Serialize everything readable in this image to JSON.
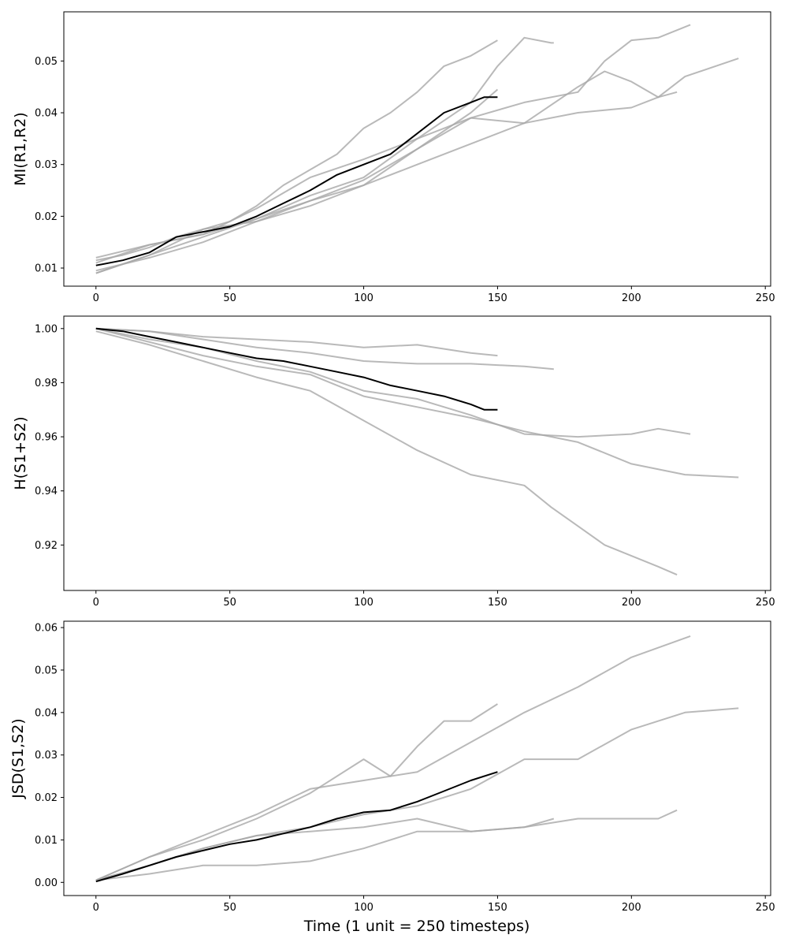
{
  "chart_data": [
    {
      "type": "line",
      "title": "",
      "xlabel": "",
      "ylabel": "MI(R1,R2)",
      "xlim": [
        -12,
        252
      ],
      "ylim": [
        0.0065,
        0.0595
      ],
      "xticks": [
        0,
        50,
        100,
        150,
        200,
        250
      ],
      "yticks": [
        0.01,
        0.02,
        0.03,
        0.04,
        0.05
      ],
      "ytick_labels": [
        "0.01",
        "0.02",
        "0.03",
        "0.04",
        "0.05"
      ],
      "grid": false,
      "series": [
        {
          "style": "gray",
          "x": [
            0,
            10,
            20,
            30,
            40,
            50,
            60,
            70,
            80,
            90,
            100,
            110,
            120,
            130,
            140,
            150
          ],
          "y": [
            0.0115,
            0.0125,
            0.014,
            0.016,
            0.0175,
            0.019,
            0.022,
            0.026,
            0.029,
            0.032,
            0.037,
            0.04,
            0.044,
            0.049,
            0.051,
            0.054
          ]
        },
        {
          "style": "gray",
          "x": [
            0,
            20,
            40,
            60,
            80,
            100,
            120,
            140,
            150,
            160,
            170,
            171
          ],
          "y": [
            0.012,
            0.0145,
            0.0165,
            0.0215,
            0.0275,
            0.031,
            0.035,
            0.042,
            0.049,
            0.0545,
            0.0535,
            0.0535
          ]
        },
        {
          "style": "gray",
          "x": [
            0,
            20,
            40,
            60,
            80,
            100,
            120,
            140,
            150
          ],
          "y": [
            0.009,
            0.0125,
            0.0175,
            0.019,
            0.023,
            0.027,
            0.033,
            0.04,
            0.0445
          ]
        },
        {
          "style": "gray",
          "x": [
            0,
            20,
            40,
            60,
            80,
            100,
            120,
            140,
            160,
            180,
            190,
            200,
            210,
            222
          ],
          "y": [
            0.011,
            0.0145,
            0.0165,
            0.0195,
            0.024,
            0.0275,
            0.035,
            0.039,
            0.042,
            0.044,
            0.05,
            0.054,
            0.0545,
            0.057
          ]
        },
        {
          "style": "gray",
          "x": [
            0,
            20,
            40,
            60,
            80,
            100,
            120,
            140,
            160,
            180,
            190,
            200,
            210,
            217
          ],
          "y": [
            0.009,
            0.0125,
            0.016,
            0.0195,
            0.023,
            0.026,
            0.033,
            0.039,
            0.038,
            0.045,
            0.048,
            0.046,
            0.043,
            0.044
          ]
        },
        {
          "style": "gray",
          "x": [
            0,
            20,
            40,
            60,
            80,
            100,
            120,
            140,
            160,
            180,
            200,
            210,
            220,
            240
          ],
          "y": [
            0.0095,
            0.012,
            0.015,
            0.019,
            0.022,
            0.026,
            0.03,
            0.034,
            0.038,
            0.04,
            0.041,
            0.043,
            0.047,
            0.0505
          ]
        },
        {
          "style": "mean",
          "x": [
            0,
            10,
            20,
            30,
            40,
            50,
            60,
            70,
            80,
            90,
            100,
            110,
            120,
            130,
            140,
            145,
            150
          ],
          "y": [
            0.0105,
            0.0115,
            0.013,
            0.016,
            0.017,
            0.018,
            0.02,
            0.0225,
            0.025,
            0.028,
            0.03,
            0.032,
            0.036,
            0.04,
            0.042,
            0.043,
            0.043
          ]
        }
      ]
    },
    {
      "type": "line",
      "title": "",
      "xlabel": "",
      "ylabel": "H(S1+S2)",
      "xlim": [
        -12,
        252
      ],
      "ylim": [
        0.9032,
        1.0046
      ],
      "xticks": [
        0,
        50,
        100,
        150,
        200,
        250
      ],
      "yticks": [
        0.92,
        0.94,
        0.96,
        0.98,
        1.0
      ],
      "ytick_labels": [
        "0.92",
        "0.94",
        "0.96",
        "0.98",
        "1.00"
      ],
      "grid": false,
      "series": [
        {
          "style": "gray",
          "x": [
            0,
            20,
            40,
            60,
            80,
            100,
            120,
            140,
            150
          ],
          "y": [
            1.0,
            0.999,
            0.997,
            0.996,
            0.995,
            0.993,
            0.994,
            0.991,
            0.99
          ]
        },
        {
          "style": "gray",
          "x": [
            0,
            20,
            40,
            60,
            80,
            100,
            120,
            140,
            160,
            171
          ],
          "y": [
            1.0,
            0.999,
            0.996,
            0.993,
            0.991,
            0.988,
            0.987,
            0.987,
            0.986,
            0.985
          ]
        },
        {
          "style": "gray",
          "x": [
            0,
            20,
            40,
            60,
            80,
            100,
            120,
            140,
            160,
            180,
            200,
            210,
            222
          ],
          "y": [
            1.0,
            0.996,
            0.993,
            0.988,
            0.984,
            0.977,
            0.974,
            0.968,
            0.961,
            0.96,
            0.961,
            0.963,
            0.961
          ]
        },
        {
          "style": "gray",
          "x": [
            0,
            20,
            40,
            60,
            80,
            100,
            120,
            140,
            160,
            180,
            200,
            220,
            240
          ],
          "y": [
            1.0,
            0.995,
            0.99,
            0.986,
            0.983,
            0.975,
            0.971,
            0.967,
            0.962,
            0.958,
            0.95,
            0.946,
            0.945
          ]
        },
        {
          "style": "gray",
          "x": [
            0,
            20,
            40,
            60,
            80,
            100,
            120,
            140,
            160,
            170,
            180,
            190,
            200,
            210,
            217
          ],
          "y": [
            0.999,
            0.994,
            0.988,
            0.982,
            0.977,
            0.966,
            0.955,
            0.946,
            0.942,
            0.934,
            0.927,
            0.92,
            0.916,
            0.912,
            0.909
          ]
        },
        {
          "style": "mean",
          "x": [
            0,
            10,
            20,
            30,
            40,
            50,
            60,
            70,
            80,
            90,
            100,
            110,
            120,
            130,
            140,
            145,
            150
          ],
          "y": [
            1.0,
            0.999,
            0.997,
            0.995,
            0.993,
            0.991,
            0.989,
            0.988,
            0.986,
            0.984,
            0.982,
            0.979,
            0.977,
            0.975,
            0.972,
            0.97,
            0.97
          ]
        }
      ]
    },
    {
      "type": "line",
      "title": "",
      "xlabel": "Time (1 unit = 250 timesteps)",
      "ylabel": "JSD(S1,S2)",
      "xlim": [
        -12,
        252
      ],
      "ylim": [
        -0.0031,
        0.0615
      ],
      "xticks": [
        0,
        50,
        100,
        150,
        200,
        250
      ],
      "yticks": [
        0.0,
        0.01,
        0.02,
        0.03,
        0.04,
        0.05,
        0.06
      ],
      "ytick_labels": [
        "0.00",
        "0.01",
        "0.02",
        "0.03",
        "0.04",
        "0.05",
        "0.06"
      ],
      "grid": false,
      "series": [
        {
          "style": "gray",
          "x": [
            0,
            20,
            40,
            60,
            80,
            100,
            110,
            120,
            130,
            140,
            150
          ],
          "y": [
            0.0005,
            0.006,
            0.01,
            0.015,
            0.021,
            0.029,
            0.025,
            0.032,
            0.038,
            0.038,
            0.042
          ]
        },
        {
          "style": "gray",
          "x": [
            0,
            20,
            40,
            60,
            80,
            100,
            120,
            140,
            160,
            180,
            200,
            222
          ],
          "y": [
            0.0005,
            0.006,
            0.011,
            0.016,
            0.022,
            0.024,
            0.026,
            0.033,
            0.04,
            0.046,
            0.053,
            0.058
          ]
        },
        {
          "style": "gray",
          "x": [
            0,
            20,
            40,
            60,
            80,
            100,
            120,
            140,
            160,
            171
          ],
          "y": [
            0.0005,
            0.004,
            0.008,
            0.011,
            0.012,
            0.013,
            0.015,
            0.012,
            0.013,
            0.015
          ]
        },
        {
          "style": "gray",
          "x": [
            0,
            20,
            40,
            60,
            80,
            100,
            120,
            140,
            160,
            180,
            200,
            220,
            240
          ],
          "y": [
            0.0005,
            0.004,
            0.008,
            0.011,
            0.013,
            0.016,
            0.018,
            0.022,
            0.029,
            0.029,
            0.036,
            0.04,
            0.041
          ]
        },
        {
          "style": "gray",
          "x": [
            0,
            20,
            40,
            60,
            80,
            100,
            120,
            140,
            160,
            180,
            200,
            210,
            217
          ],
          "y": [
            0.0005,
            0.002,
            0.004,
            0.004,
            0.005,
            0.008,
            0.012,
            0.012,
            0.013,
            0.015,
            0.015,
            0.015,
            0.017
          ]
        },
        {
          "style": "mean",
          "x": [
            0,
            10,
            20,
            30,
            40,
            50,
            60,
            70,
            80,
            90,
            100,
            110,
            120,
            130,
            140,
            150
          ],
          "y": [
            0.0002,
            0.002,
            0.004,
            0.006,
            0.0075,
            0.009,
            0.01,
            0.0115,
            0.013,
            0.015,
            0.0165,
            0.017,
            0.019,
            0.0215,
            0.024,
            0.026
          ]
        }
      ]
    }
  ]
}
